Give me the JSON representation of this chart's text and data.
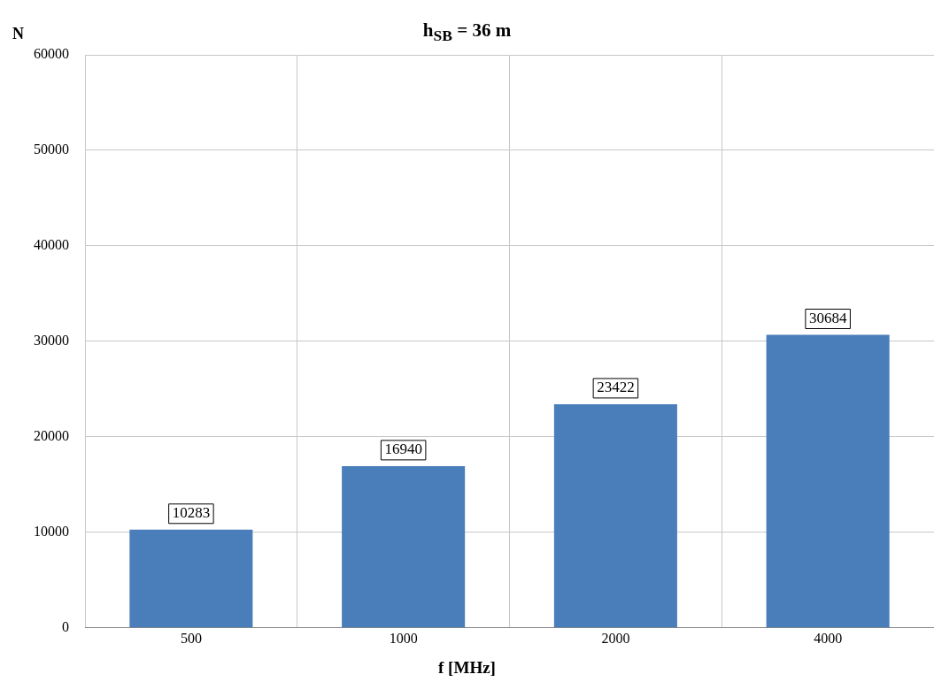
{
  "chart_data": {
    "type": "bar",
    "title": "h$_{SB}$ = 36 m",
    "xlabel": "f [MHz]",
    "ylabel": "N",
    "categories": [
      "500",
      "1000",
      "2000",
      "4000"
    ],
    "values": [
      10283,
      16940,
      23422,
      30684
    ],
    "color": "#4a7ebb",
    "ylim": [
      0,
      60000
    ],
    "yticks": [
      0,
      10000,
      20000,
      30000,
      40000,
      50000,
      60000
    ],
    "grid": true,
    "data_labels": true
  }
}
